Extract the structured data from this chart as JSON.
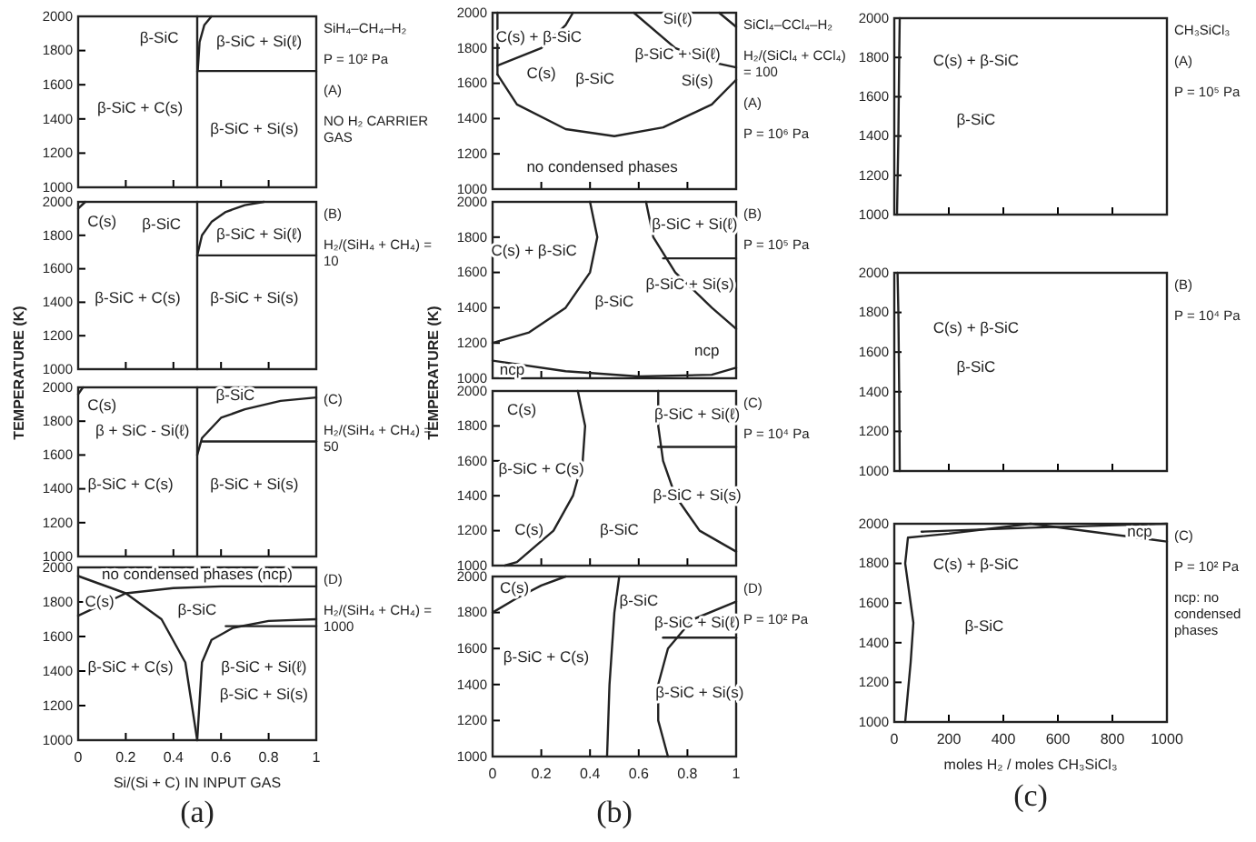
{
  "chart_data": [
    {
      "type": "line",
      "xlim": [
        0,
        1
      ],
      "ylim": [
        1000,
        2000
      ],
      "xticks": [
        0,
        0.2,
        0.4,
        0.6,
        0.8,
        1.0
      ],
      "yticks": [
        1000,
        1200,
        1400,
        1600,
        1800,
        2000
      ],
      "tick_labels": "y",
      "series": [
        {
          "color": "#222222",
          "x": [
            0.5,
            0.5
          ],
          "values": [
            1000,
            2000
          ]
        },
        {
          "color": "#222222",
          "x": [
            0.502,
            0.51,
            0.53,
            0.56
          ],
          "values": [
            1680,
            1850,
            1950,
            2000
          ]
        },
        {
          "color": "#222222",
          "x": [
            0.5,
            1.0
          ],
          "values": [
            1680,
            1680
          ]
        }
      ],
      "annotations": [
        "SiH₄–CH₄–H₂",
        "P = 10² Pa",
        "(A)",
        "NO H₂ CARRIER GAS",
        "β-SiC",
        "β-SiC + Si(ℓ)",
        "β-SiC + C(s)",
        "β-SiC + Si(s)"
      ]
    },
    {
      "type": "line",
      "xlim": [
        0,
        1
      ],
      "ylim": [
        1000,
        2000
      ],
      "xticks": [
        0,
        0.2,
        0.4,
        0.6,
        0.8,
        1.0
      ],
      "yticks": [
        1000,
        1200,
        1400,
        1600,
        1800,
        2000
      ],
      "tick_labels": "y",
      "ylabel": "TEMPERATURE (K)",
      "series": [
        {
          "color": "#222222",
          "x": [
            0.5,
            0.5
          ],
          "values": [
            1000,
            2000
          ]
        },
        {
          "color": "#222222",
          "x": [
            0.5,
            0.52,
            0.56,
            0.62,
            0.7,
            0.78
          ],
          "values": [
            1680,
            1800,
            1880,
            1940,
            1980,
            2000
          ]
        },
        {
          "color": "#222222",
          "x": [
            0.5,
            1.0
          ],
          "values": [
            1680,
            1680
          ]
        },
        {
          "color": "#222222",
          "x": [
            0,
            0.03
          ],
          "values": [
            1960,
            2000
          ]
        }
      ],
      "annotations": [
        "(B)",
        "H₂/(SiH₄ + CH₄) = 10",
        "C(s)",
        "β-SiC",
        "β-SiC + Si(ℓ)",
        "β-SiC + C(s)",
        "β-SiC + Si(s)"
      ]
    },
    {
      "type": "line",
      "xlim": [
        0,
        1
      ],
      "ylim": [
        1000,
        2000
      ],
      "xticks": [
        0,
        0.2,
        0.4,
        0.6,
        0.8,
        1.0
      ],
      "yticks": [
        1000,
        1200,
        1400,
        1600,
        1800,
        2000
      ],
      "tick_labels": "y",
      "series": [
        {
          "color": "#222222",
          "x": [
            0.5,
            0.5
          ],
          "values": [
            1000,
            2000
          ]
        },
        {
          "color": "#222222",
          "x": [
            0.5,
            0.52,
            0.6,
            0.7,
            0.85,
            1.0
          ],
          "values": [
            1600,
            1700,
            1820,
            1870,
            1920,
            1940
          ]
        },
        {
          "color": "#222222",
          "x": [
            0.52,
            1.0
          ],
          "values": [
            1680,
            1680
          ]
        },
        {
          "color": "#222222",
          "x": [
            0,
            0.02
          ],
          "values": [
            1960,
            2000
          ]
        }
      ],
      "annotations": [
        "(C)",
        "H₂/(SiH₄ + CH₄) = 50",
        "C(s)",
        "β-SiC",
        "β + SiC - Si(ℓ)",
        "β-SiC + C(s)",
        "β-SiC + Si(s)"
      ]
    },
    {
      "type": "line",
      "xlim": [
        0,
        1
      ],
      "ylim": [
        1000,
        2000
      ],
      "xticks": [
        0,
        0.2,
        0.4,
        0.6,
        0.8,
        1.0
      ],
      "yticks": [
        1000,
        1200,
        1400,
        1600,
        1800,
        2000
      ],
      "xlabel": "Si/(Si + C) IN INPUT GAS",
      "subtitle": "(a)",
      "series": [
        {
          "color": "#222222",
          "x": [
            0,
            0.2,
            0.4,
            0.6,
            1.0
          ],
          "values": [
            1720,
            1850,
            1880,
            1890,
            1890
          ]
        },
        {
          "color": "#222222",
          "x": [
            0,
            0.2,
            0.35,
            0.45,
            0.5
          ],
          "values": [
            1950,
            1850,
            1700,
            1450,
            1000
          ]
        },
        {
          "color": "#222222",
          "x": [
            0.5,
            0.52,
            0.56,
            0.65,
            0.8,
            1.0
          ],
          "values": [
            1000,
            1450,
            1580,
            1650,
            1690,
            1700
          ]
        },
        {
          "color": "#222222",
          "x": [
            0.62,
            1.0
          ],
          "values": [
            1660,
            1660
          ]
        }
      ],
      "annotations": [
        "(D)",
        "H₂/(SiH₄ + CH₄) = 1000",
        "no condensed phases (ncp)",
        "C(s)",
        "β-SiC",
        "β-SiC + C(s)",
        "β-SiC + Si(ℓ)",
        "β-SiC + Si(s)"
      ]
    },
    {
      "type": "line",
      "xlim": [
        0,
        1
      ],
      "ylim": [
        1000,
        2000
      ],
      "xticks": [
        0,
        0.2,
        0.4,
        0.6,
        0.8,
        1.0
      ],
      "yticks": [
        1000,
        1200,
        1400,
        1600,
        1800,
        2000
      ],
      "tick_labels": "y",
      "series": [
        {
          "color": "#222222",
          "x": [
            0.02,
            0.1,
            0.3,
            0.5,
            0.7,
            0.9,
            1.0
          ],
          "values": [
            1650,
            1480,
            1340,
            1300,
            1350,
            1480,
            1620
          ]
        },
        {
          "color": "#222222",
          "x": [
            0.02,
            0.2,
            0.3,
            0.33
          ],
          "values": [
            1700,
            1800,
            1930,
            2000
          ]
        },
        {
          "color": "#222222",
          "x": [
            0.02,
            0.02
          ],
          "values": [
            1650,
            2000
          ]
        },
        {
          "color": "#222222",
          "x": [
            0.58,
            0.75,
            0.9,
            1.0
          ],
          "values": [
            2000,
            1800,
            1720,
            1690
          ]
        },
        {
          "color": "#222222",
          "x": [
            0.93,
            1.0
          ],
          "values": [
            2000,
            1920
          ]
        }
      ],
      "annotations": [
        "SiCl₄–CCl₄–H₂",
        "H₂/(SiCl₄ + CCl₄) = 100",
        "(A)",
        "P = 10⁶ Pa",
        "C(s) + β-SiC",
        "C(s)",
        "β-SiC",
        "Si(ℓ)",
        "β-SiC + Si(ℓ)",
        "Si(s)",
        "no condensed phases"
      ]
    },
    {
      "type": "line",
      "xlim": [
        0,
        1
      ],
      "ylim": [
        1000,
        2000
      ],
      "xticks": [
        0,
        0.2,
        0.4,
        0.6,
        0.8,
        1.0
      ],
      "yticks": [
        1000,
        1200,
        1400,
        1600,
        1800,
        2000
      ],
      "tick_labels": "y",
      "ylabel": "TEMPERATURE (K)",
      "series": [
        {
          "color": "#222222",
          "x": [
            0.4,
            0.43,
            0.4,
            0.3,
            0.15,
            0
          ],
          "values": [
            2000,
            1800,
            1600,
            1400,
            1260,
            1200
          ]
        },
        {
          "color": "#222222",
          "x": [
            0,
            0.3,
            0.6,
            0.9,
            1.0
          ],
          "values": [
            1100,
            1040,
            1010,
            1020,
            1060
          ]
        },
        {
          "color": "#222222",
          "x": [
            0.63,
            0.66,
            0.75,
            0.9,
            1.0
          ],
          "values": [
            2000,
            1800,
            1600,
            1400,
            1280
          ]
        },
        {
          "color": "#222222",
          "x": [
            0.7,
            1.0
          ],
          "values": [
            1680,
            1680
          ]
        }
      ],
      "annotations": [
        "(B)",
        "P = 10⁵ Pa",
        "C(s) + β-SiC",
        "β-SiC",
        "β-SiC + Si(ℓ)",
        "β-SiC + Si(s)",
        "ncp",
        "ncp"
      ]
    },
    {
      "type": "line",
      "xlim": [
        0,
        1
      ],
      "ylim": [
        1000,
        2000
      ],
      "xticks": [
        0,
        0.2,
        0.4,
        0.6,
        0.8,
        1.0
      ],
      "yticks": [
        1000,
        1200,
        1400,
        1600,
        1800,
        2000
      ],
      "tick_labels": "y",
      "series": [
        {
          "color": "#222222",
          "x": [
            0.35,
            0.38,
            0.37,
            0.33,
            0.25,
            0.1,
            0.05
          ],
          "values": [
            2000,
            1800,
            1600,
            1400,
            1200,
            1020,
            1000
          ]
        },
        {
          "color": "#222222",
          "x": [
            0.68,
            0.68,
            0.7,
            0.75,
            0.85,
            1.0
          ],
          "values": [
            2000,
            1800,
            1600,
            1400,
            1200,
            1080
          ]
        },
        {
          "color": "#222222",
          "x": [
            0.68,
            1.0
          ],
          "values": [
            1680,
            1680
          ]
        }
      ],
      "annotations": [
        "(C)",
        "P = 10⁴ Pa",
        "C(s)",
        "β-SiC + C(s)",
        "C(s)",
        "β-SiC",
        "β-SiC + Si(ℓ)",
        "β-SiC + Si(s)"
      ]
    },
    {
      "type": "line",
      "xlim": [
        0,
        1
      ],
      "ylim": [
        1000,
        2000
      ],
      "xticks": [
        0,
        0.2,
        0.4,
        0.6,
        0.8,
        1.0
      ],
      "yticks": [
        1000,
        1200,
        1400,
        1600,
        1800,
        2000
      ],
      "subtitle": "(b)",
      "series": [
        {
          "color": "#222222",
          "x": [
            0,
            0.1,
            0.2,
            0.3
          ],
          "values": [
            1800,
            1880,
            1950,
            2000
          ]
        },
        {
          "color": "#222222",
          "x": [
            0.47,
            0.48,
            0.5,
            0.52
          ],
          "values": [
            1000,
            1400,
            1800,
            2000
          ]
        },
        {
          "color": "#222222",
          "x": [
            0.72,
            0.68,
            0.68,
            0.72,
            0.82,
            1.0
          ],
          "values": [
            1000,
            1200,
            1400,
            1600,
            1760,
            1860
          ]
        },
        {
          "color": "#222222",
          "x": [
            0.7,
            1.0
          ],
          "values": [
            1660,
            1660
          ]
        }
      ],
      "annotations": [
        "(D)",
        "P = 10² Pa",
        "C(s)",
        "β-SiC",
        "β-SiC + Si(ℓ)",
        "β-SiC + C(s)",
        "β-SiC + Si(s)"
      ]
    },
    {
      "type": "line",
      "xlim": [
        0,
        1000
      ],
      "ylim": [
        1000,
        2000
      ],
      "xticks": [
        0,
        200,
        400,
        600,
        800,
        1000
      ],
      "yticks": [
        1000,
        1200,
        1400,
        1600,
        1800,
        2000
      ],
      "tick_labels": "y",
      "series": [
        {
          "color": "#222222",
          "x": [
            10,
            15,
            18,
            20
          ],
          "values": [
            1000,
            1400,
            1800,
            2000
          ]
        }
      ],
      "annotations": [
        "CH₃SiCl₃",
        "(A)",
        "P = 10⁵ Pa",
        "C(s) + β-SiC",
        "β-SiC"
      ]
    },
    {
      "type": "line",
      "xlim": [
        0,
        1000
      ],
      "ylim": [
        1000,
        2000
      ],
      "xticks": [
        0,
        200,
        400,
        600,
        800,
        1000
      ],
      "yticks": [
        1000,
        1200,
        1400,
        1600,
        1800,
        2000
      ],
      "tick_labels": "y",
      "series": [
        {
          "color": "#222222",
          "x": [
            20,
            18,
            15,
            12
          ],
          "values": [
            1000,
            1400,
            1800,
            2000
          ]
        }
      ],
      "annotations": [
        "(B)",
        "P = 10⁴ Pa",
        "C(s) + β-SiC",
        "β-SiC"
      ]
    },
    {
      "type": "line",
      "xlim": [
        0,
        1000
      ],
      "ylim": [
        1000,
        2000
      ],
      "xticks": [
        0,
        200,
        400,
        600,
        800,
        1000
      ],
      "yticks": [
        1000,
        1200,
        1400,
        1600,
        1800,
        2000
      ],
      "xlabel": "moles H₂ / moles CH₃SiCl₃",
      "subtitle": "(c)",
      "series": [
        {
          "color": "#222222",
          "x": [
            40,
            60,
            70,
            40,
            50,
            200,
            500,
            1000
          ],
          "values": [
            1000,
            1300,
            1500,
            1800,
            1930,
            1950,
            2000,
            1910
          ]
        },
        {
          "color": "#222222",
          "x": [
            100,
            500,
            1000
          ],
          "values": [
            1960,
            1980,
            2000
          ]
        }
      ],
      "annotations": [
        "(C)",
        "P = 10² Pa",
        "ncp: no condensed phases",
        "C(s) + β-SiC",
        "β-SiC",
        "ncp"
      ]
    }
  ]
}
